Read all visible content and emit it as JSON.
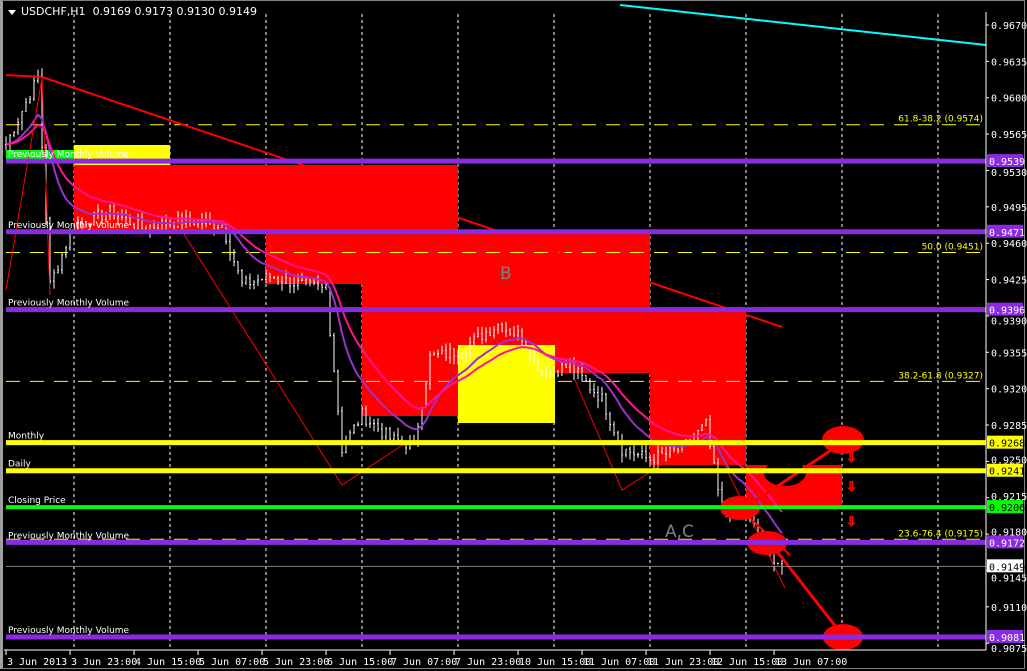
{
  "title": {
    "symbol": "USDCHF,H1",
    "ohlc": "0.9169 0.9173 0.9130 0.9149",
    "menu_icon": "triangle-down-icon"
  },
  "chart_data": {
    "type": "ohlc-bar",
    "price_axis": {
      "ylim": [
        0.9065,
        0.969
      ],
      "ticks": [
        "0.9670",
        "0.9635",
        "0.9600",
        "0.9565",
        "0.9530",
        "0.9495",
        "0.9460",
        "0.9425",
        "0.9390",
        "0.9355",
        "0.9320",
        "0.9285",
        "0.9250",
        "0.9215",
        "0.9180",
        "0.9145",
        "0.9110",
        "0.9075"
      ]
    },
    "time_axis": {
      "ticks": [
        "3 Jun 2013",
        "3 Jun 23:00",
        "4 Jun 15:00",
        "5 Jun 07:00",
        "5 Jun 23:00",
        "6 Jun 15:00",
        "7 Jun 07:00",
        "7 Jun 23:00",
        "10 Jun 15:00",
        "11 Jun 07:00",
        "11 Jun 23:00",
        "12 Jun 15:00",
        "13 Jun 07:00"
      ]
    },
    "grid": "vertical-dashed",
    "price_path": [
      [
        "3 Jun 07:00",
        0.9555
      ],
      [
        "3 Jun 15:00",
        0.962
      ],
      [
        "3 Jun 18:00",
        0.942
      ],
      [
        "4 Jun 00:00",
        0.9478
      ],
      [
        "4 Jun 09:00",
        0.949
      ],
      [
        "4 Jun 17:00",
        0.9475
      ],
      [
        "5 Jun 03:00",
        0.9482
      ],
      [
        "5 Jun 13:00",
        0.9478
      ],
      [
        "5 Jun 18:00",
        0.942
      ],
      [
        "6 Jun 01:00",
        0.9428
      ],
      [
        "6 Jun 09:00",
        0.942
      ],
      [
        "6 Jun 15:00",
        0.9415
      ],
      [
        "6 Jun 19:00",
        0.9262
      ],
      [
        "7 Jun 00:00",
        0.9295
      ],
      [
        "7 Jun 07:00",
        0.9272
      ],
      [
        "7 Jun 13:00",
        0.9265
      ],
      [
        "7 Jun 17:00",
        0.935
      ],
      [
        "10 Jun 00:00",
        0.9356
      ],
      [
        "10 Jun 10:00",
        0.9382
      ],
      [
        "10 Jun 16:00",
        0.937
      ],
      [
        "10 Jun 21:00",
        0.9335
      ],
      [
        "11 Jun 04:00",
        0.9342
      ],
      [
        "11 Jun 12:00",
        0.931
      ],
      [
        "11 Jun 17:00",
        0.9262
      ],
      [
        "12 Jun 00:00",
        0.9252
      ],
      [
        "12 Jun 08:00",
        0.9262
      ],
      [
        "12 Jun 14:00",
        0.9285
      ],
      [
        "12 Jun 18:00",
        0.92
      ],
      [
        "12 Jun 23:00",
        0.921
      ],
      [
        "13 Jun 04:00",
        0.917
      ],
      [
        "13 Jun 09:00",
        0.9149
      ]
    ],
    "current_price": {
      "value": 0.9149,
      "label": "0.9149"
    },
    "levels": [
      {
        "price": 0.9539,
        "label": "0.9539",
        "text": "Previously Monthly Volume",
        "color": "#8a2be2"
      },
      {
        "price": 0.9471,
        "label": "0.9471",
        "text": "Previously Monthly Volume",
        "color": "#8a2be2"
      },
      {
        "price": 0.9396,
        "label": "0.9396",
        "text": "Previously Monthly Volume",
        "color": "#8a2be2"
      },
      {
        "price": 0.9268,
        "label": "0.9268",
        "text": "Monthly",
        "color": "#ffff00"
      },
      {
        "price": 0.9241,
        "label": "0.9241",
        "text": "Daily",
        "color": "#ffff00"
      },
      {
        "price": 0.9206,
        "label": "0.9206",
        "text": "Closing Price",
        "color": "#00ff00"
      },
      {
        "price": 0.9172,
        "label": "0.9172",
        "text": "Previously Monthly Volume",
        "color": "#8a2be2"
      },
      {
        "price": 0.9081,
        "label": "0.9081",
        "text": "Previously Monthly Volume",
        "color": "#8a2be2"
      }
    ],
    "fibo": [
      {
        "price": 0.9574,
        "label": "61.8-38.2 (0.9574)"
      },
      {
        "price": 0.9451,
        "label": "50.0 (0.9451)"
      },
      {
        "price": 0.9327,
        "label": "38.2-61.8 (0.9327)"
      },
      {
        "price": 0.9175,
        "label": "23.6-76.4 (0.9175)"
      }
    ],
    "annotations": [
      "B",
      "A,C"
    ],
    "colors": {
      "bars": "#ffffff",
      "zone": "#ff0000",
      "highlight": "#ffff00",
      "ma_fast": "#ff1493",
      "ma_slow": "#9932cc",
      "trend": "#ff0000",
      "channel": "#00ffff"
    }
  }
}
